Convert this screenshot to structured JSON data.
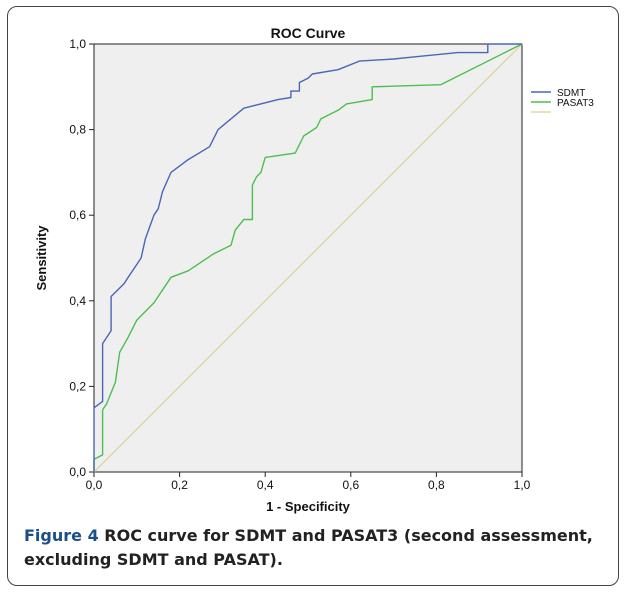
{
  "chart_data": {
    "type": "line",
    "title": "ROC Curve",
    "xlabel": "1 - Specificity",
    "ylabel": "Sensitivity",
    "xlim": [
      0,
      1
    ],
    "ylim": [
      0,
      1
    ],
    "x_ticks": [
      "0,0",
      "0,2",
      "0,4",
      "0,6",
      "0,8",
      "1,0"
    ],
    "y_ticks": [
      "0,0",
      "0,2",
      "0,4",
      "0,6",
      "0,8",
      "1,0"
    ],
    "grid": false,
    "legend_position": "right",
    "series": [
      {
        "name": "SDMT",
        "color": "#4a67b5",
        "points": [
          [
            0,
            0
          ],
          [
            0,
            0.15
          ],
          [
            0.02,
            0.165
          ],
          [
            0.02,
            0.3
          ],
          [
            0.04,
            0.33
          ],
          [
            0.04,
            0.41
          ],
          [
            0.07,
            0.44
          ],
          [
            0.08,
            0.455
          ],
          [
            0.11,
            0.5
          ],
          [
            0.12,
            0.545
          ],
          [
            0.14,
            0.6
          ],
          [
            0.15,
            0.615
          ],
          [
            0.16,
            0.655
          ],
          [
            0.18,
            0.7
          ],
          [
            0.22,
            0.73
          ],
          [
            0.27,
            0.76
          ],
          [
            0.29,
            0.8
          ],
          [
            0.35,
            0.85
          ],
          [
            0.43,
            0.87
          ],
          [
            0.46,
            0.875
          ],
          [
            0.46,
            0.89
          ],
          [
            0.48,
            0.89
          ],
          [
            0.48,
            0.91
          ],
          [
            0.5,
            0.92
          ],
          [
            0.51,
            0.93
          ],
          [
            0.57,
            0.94
          ],
          [
            0.62,
            0.96
          ],
          [
            0.7,
            0.965
          ],
          [
            0.75,
            0.97
          ],
          [
            0.85,
            0.98
          ],
          [
            0.92,
            0.98
          ],
          [
            0.92,
            1.0
          ],
          [
            1,
            1
          ]
        ]
      },
      {
        "name": "PASAT3",
        "color": "#4dbf4d",
        "points": [
          [
            0,
            0
          ],
          [
            0,
            0.03
          ],
          [
            0.02,
            0.04
          ],
          [
            0.02,
            0.145
          ],
          [
            0.03,
            0.16
          ],
          [
            0.05,
            0.21
          ],
          [
            0.06,
            0.28
          ],
          [
            0.08,
            0.315
          ],
          [
            0.1,
            0.355
          ],
          [
            0.14,
            0.395
          ],
          [
            0.18,
            0.455
          ],
          [
            0.22,
            0.47
          ],
          [
            0.28,
            0.51
          ],
          [
            0.32,
            0.53
          ],
          [
            0.33,
            0.565
          ],
          [
            0.35,
            0.59
          ],
          [
            0.37,
            0.59
          ],
          [
            0.37,
            0.67
          ],
          [
            0.38,
            0.69
          ],
          [
            0.39,
            0.7
          ],
          [
            0.4,
            0.735
          ],
          [
            0.47,
            0.745
          ],
          [
            0.49,
            0.785
          ],
          [
            0.52,
            0.805
          ],
          [
            0.53,
            0.825
          ],
          [
            0.57,
            0.845
          ],
          [
            0.59,
            0.86
          ],
          [
            0.65,
            0.87
          ],
          [
            0.65,
            0.9
          ],
          [
            0.81,
            0.905
          ],
          [
            1,
            1
          ]
        ]
      },
      {
        "name": "",
        "color": "#e0d8a0",
        "points": [
          [
            0,
            0
          ],
          [
            1,
            1
          ]
        ]
      }
    ]
  },
  "caption": {
    "label": "Figure 4",
    "text": " ROC curve for SDMT and PASAT3 (second assessment, excluding SDMT and PASAT)."
  }
}
